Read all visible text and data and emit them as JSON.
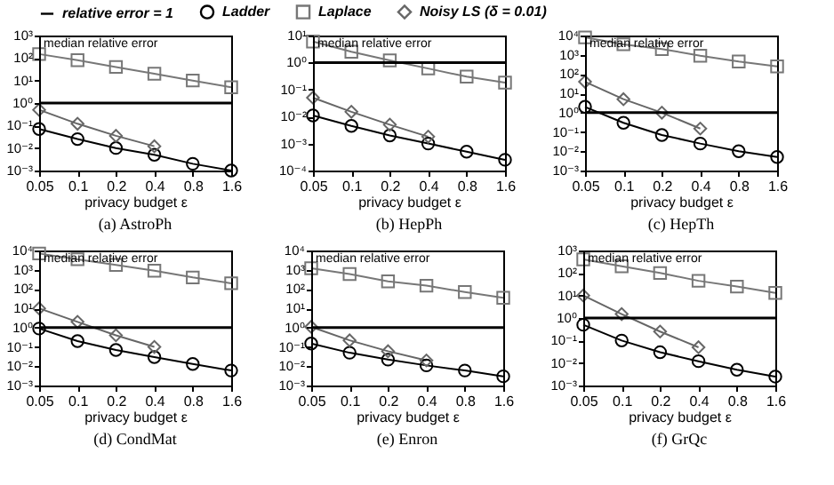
{
  "chart_data": [
    {
      "type": "line",
      "title": "(a) AstroPh",
      "xlabel": "privacy budget ε",
      "ylabel": "median relative error",
      "log": true,
      "legend": "top",
      "categories": [
        "0.05",
        "0.1",
        "0.2",
        "0.4",
        "0.8",
        "1.6"
      ],
      "ylim": [
        0.001,
        1000
      ],
      "yticks": [
        {
          "value": 0.001,
          "label": "10⁻³"
        },
        {
          "value": 0.01,
          "label": "10⁻²"
        },
        {
          "value": 0.1,
          "label": "10⁻¹"
        },
        {
          "value": 1,
          "label": "10⁰"
        },
        {
          "value": 10,
          "label": "10¹"
        },
        {
          "value": 100,
          "label": "10²"
        },
        {
          "value": 1000,
          "label": "10³"
        }
      ],
      "ref_lines": [
        {
          "axis": "y",
          "value": 1,
          "label": "relative error = 1",
          "color": "#000000"
        }
      ],
      "series": [
        {
          "name": "Ladder",
          "color": "#000000",
          "marker": "circle",
          "values": [
            0.07,
            0.025,
            0.01,
            0.005,
            0.002,
            0.001
          ]
        },
        {
          "name": "Laplace",
          "color": "#777777",
          "marker": "square",
          "values": [
            150,
            80,
            40,
            20,
            10,
            5
          ]
        },
        {
          "name": "Noisy LS (δ = 0.01)",
          "color": "#666666",
          "marker": "diamond",
          "values": [
            0.5,
            0.12,
            0.035,
            0.012,
            null,
            null
          ]
        }
      ]
    },
    {
      "type": "line",
      "title": "(b) HepPh",
      "xlabel": "privacy budget ε",
      "ylabel": "median relative error",
      "log": true,
      "legend": "top",
      "categories": [
        "0.05",
        "0.1",
        "0.2",
        "0.4",
        "0.8",
        "1.6"
      ],
      "ylim": [
        0.0001,
        10
      ],
      "yticks": [
        {
          "value": 0.0001,
          "label": "10⁻⁴"
        },
        {
          "value": 0.001,
          "label": "10⁻³"
        },
        {
          "value": 0.01,
          "label": "10⁻²"
        },
        {
          "value": 0.1,
          "label": "10⁻¹"
        },
        {
          "value": 1,
          "label": "10⁰"
        },
        {
          "value": 10,
          "label": "10¹"
        }
      ],
      "ref_lines": [
        {
          "axis": "y",
          "value": 1,
          "color": "#000000"
        }
      ],
      "series": [
        {
          "name": "Ladder",
          "color": "#000000",
          "marker": "circle",
          "values": [
            0.011,
            0.0045,
            0.002,
            0.001,
            0.0005,
            0.00025
          ]
        },
        {
          "name": "Laplace",
          "color": "#777777",
          "marker": "square",
          "values": [
            6,
            2.5,
            1.2,
            0.6,
            0.3,
            0.18
          ]
        },
        {
          "name": "Noisy LS (δ = 0.01)",
          "color": "#666666",
          "marker": "diamond",
          "values": [
            0.05,
            0.015,
            0.005,
            0.0018,
            null,
            null
          ]
        }
      ]
    },
    {
      "type": "line",
      "title": "(c) HepTh",
      "xlabel": "privacy budget ε",
      "ylabel": "median relative error",
      "log": true,
      "legend": "top",
      "categories": [
        "0.05",
        "0.1",
        "0.2",
        "0.4",
        "0.8",
        "1.6"
      ],
      "ylim": [
        0.001,
        10000
      ],
      "yticks": [
        {
          "value": 0.001,
          "label": "10⁻³"
        },
        {
          "value": 0.01,
          "label": "10⁻²"
        },
        {
          "value": 0.1,
          "label": "10⁻¹"
        },
        {
          "value": 1,
          "label": "10⁰"
        },
        {
          "value": 10,
          "label": "10¹"
        },
        {
          "value": 100,
          "label": "10²"
        },
        {
          "value": 1000,
          "label": "10³"
        },
        {
          "value": 10000,
          "label": "10⁴"
        }
      ],
      "ref_lines": [
        {
          "axis": "y",
          "value": 1,
          "color": "#000000"
        }
      ],
      "series": [
        {
          "name": "Ladder",
          "color": "#000000",
          "marker": "circle",
          "values": [
            2,
            0.3,
            0.07,
            0.025,
            0.01,
            0.005
          ]
        },
        {
          "name": "Laplace",
          "color": "#777777",
          "marker": "square",
          "values": [
            8000,
            3500,
            2000,
            900,
            450,
            250
          ]
        },
        {
          "name": "Noisy LS (δ = 0.01)",
          "color": "#666666",
          "marker": "diamond",
          "values": [
            40,
            5,
            1,
            0.15,
            null,
            null
          ]
        }
      ]
    },
    {
      "type": "line",
      "title": "(d) CondMat",
      "xlabel": "privacy budget ε",
      "ylabel": "median relative error",
      "log": true,
      "legend": "top",
      "categories": [
        "0.05",
        "0.1",
        "0.2",
        "0.4",
        "0.8",
        "1.6"
      ],
      "ylim": [
        0.001,
        10000
      ],
      "yticks": [
        {
          "value": 0.001,
          "label": "10⁻³"
        },
        {
          "value": 0.01,
          "label": "10⁻²"
        },
        {
          "value": 0.1,
          "label": "10⁻¹"
        },
        {
          "value": 1,
          "label": "10⁰"
        },
        {
          "value": 10,
          "label": "10¹"
        },
        {
          "value": 100,
          "label": "10²"
        },
        {
          "value": 1000,
          "label": "10³"
        },
        {
          "value": 10000,
          "label": "10⁴"
        }
      ],
      "ref_lines": [
        {
          "axis": "y",
          "value": 1,
          "color": "#000000"
        }
      ],
      "series": [
        {
          "name": "Ladder",
          "color": "#000000",
          "marker": "circle",
          "values": [
            0.9,
            0.2,
            0.07,
            0.03,
            0.013,
            0.006
          ]
        },
        {
          "name": "Laplace",
          "color": "#777777",
          "marker": "square",
          "values": [
            7000,
            3500,
            1800,
            900,
            400,
            200
          ]
        },
        {
          "name": "Noisy LS (δ = 0.01)",
          "color": "#666666",
          "marker": "diamond",
          "values": [
            10,
            2,
            0.4,
            0.1,
            null,
            null
          ]
        }
      ]
    },
    {
      "type": "line",
      "title": "(e) Enron",
      "xlabel": "privacy budget ε",
      "ylabel": "median relative error",
      "log": true,
      "legend": "top",
      "categories": [
        "0.05",
        "0.1",
        "0.2",
        "0.4",
        "0.8",
        "1.6"
      ],
      "ylim": [
        0.001,
        10000
      ],
      "yticks": [
        {
          "value": 0.001,
          "label": "10⁻³"
        },
        {
          "value": 0.01,
          "label": "10⁻²"
        },
        {
          "value": 0.1,
          "label": "10⁻¹"
        },
        {
          "value": 1,
          "label": "10⁰"
        },
        {
          "value": 10,
          "label": "10¹"
        },
        {
          "value": 100,
          "label": "10²"
        },
        {
          "value": 1000,
          "label": "10³"
        },
        {
          "value": 10000,
          "label": "10⁴"
        }
      ],
      "ref_lines": [
        {
          "axis": "y",
          "value": 1,
          "color": "#000000"
        }
      ],
      "series": [
        {
          "name": "Ladder",
          "color": "#000000",
          "marker": "circle",
          "values": [
            0.15,
            0.05,
            0.022,
            0.011,
            0.006,
            0.003
          ]
        },
        {
          "name": "Laplace",
          "color": "#777777",
          "marker": "square",
          "values": [
            1200,
            600,
            250,
            150,
            70,
            35
          ]
        },
        {
          "name": "Noisy LS (δ = 0.01)",
          "color": "#666666",
          "marker": "diamond",
          "values": [
            1.1,
            0.22,
            0.06,
            0.02,
            null,
            null
          ]
        }
      ]
    },
    {
      "type": "line",
      "title": "(f) GrQc",
      "xlabel": "privacy budget ε",
      "ylabel": "median relative error",
      "log": true,
      "legend": "top",
      "categories": [
        "0.05",
        "0.1",
        "0.2",
        "0.4",
        "0.8",
        "1.6"
      ],
      "ylim": [
        0.001,
        1000
      ],
      "yticks": [
        {
          "value": 0.001,
          "label": "10⁻³"
        },
        {
          "value": 0.01,
          "label": "10⁻²"
        },
        {
          "value": 0.1,
          "label": "10⁻¹"
        },
        {
          "value": 1,
          "label": "10⁰"
        },
        {
          "value": 10,
          "label": "10¹"
        },
        {
          "value": 100,
          "label": "10²"
        },
        {
          "value": 1000,
          "label": "10³"
        }
      ],
      "ref_lines": [
        {
          "axis": "y",
          "value": 1,
          "color": "#000000"
        }
      ],
      "series": [
        {
          "name": "Ladder",
          "color": "#000000",
          "marker": "circle",
          "values": [
            0.5,
            0.1,
            0.03,
            0.012,
            0.005,
            0.0025
          ]
        },
        {
          "name": "Laplace",
          "color": "#777777",
          "marker": "square",
          "values": [
            400,
            200,
            100,
            45,
            25,
            13
          ]
        },
        {
          "name": "Noisy LS (δ = 0.01)",
          "color": "#666666",
          "marker": "diamond",
          "values": [
            10,
            1.5,
            0.25,
            0.05,
            null,
            null
          ]
        }
      ]
    }
  ]
}
